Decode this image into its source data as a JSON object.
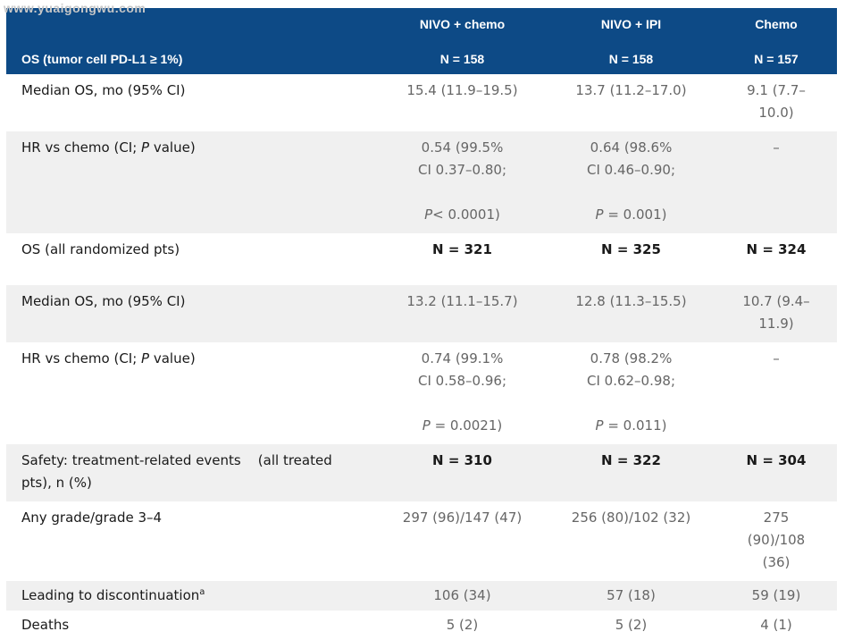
{
  "watermark": "www.yuaigongwu.com",
  "header": {
    "row_label": "OS (tumor cell PD-L1 ≥ 1%)",
    "columns": [
      {
        "name": "NIVO + chemo",
        "n": "N = 158"
      },
      {
        "name": "NIVO + IPI",
        "n": "N = 158"
      },
      {
        "name": "Chemo",
        "n": "N = 157"
      }
    ]
  },
  "rows": {
    "r1": {
      "label": "Median OS, mo (95% CI)",
      "c1": "15.4 (11.9–19.5)",
      "c2": "13.7 (11.2–17.0)",
      "c3": "9.1 (7.7–10.0)"
    },
    "r2": {
      "label_pre": "HR vs chemo (CI; ",
      "label_p": "P",
      "label_post": " value)",
      "c1_line": "0.54 (99.5% CI 0.37–0.80;",
      "c1_p": "P",
      "c1_pval": "< 0.0001)",
      "c2_line": "0.64 (98.6% CI 0.46–0.90;",
      "c2_p": "P",
      "c2_pval": " = 0.001)",
      "c3": "–"
    },
    "r3": {
      "label": "OS (all randomized pts)",
      "c1": "N = 321",
      "c2": "N = 325",
      "c3": "N = 324"
    },
    "r4": {
      "label": "Median OS, mo (95% CI)",
      "c1": "13.2 (11.1–15.7)",
      "c2": "12.8 (11.3–15.5)",
      "c3": "10.7 (9.4–11.9)"
    },
    "r5": {
      "label_pre": "HR vs chemo (CI; ",
      "label_p": "P",
      "label_post": " value)",
      "c1_line": "0.74 (99.1% CI 0.58–0.96;",
      "c1_p": "P",
      "c1_pval": " = 0.0021)",
      "c2_line": "0.78 (98.2% CI 0.62–0.98;",
      "c2_p": "P",
      "c2_pval": " = 0.011)",
      "c3": "–"
    },
    "r6": {
      "label": "Safety: treatment-related events    (all treated pts), n (%)",
      "c1": "N = 310",
      "c2": "N = 322",
      "c3": "N = 304"
    },
    "r7": {
      "label": "Any grade/grade 3–4",
      "c1": "297 (96)/147 (47)",
      "c2": "256 (80)/102 (32)",
      "c3": "275 (90)/108 (36)"
    },
    "r8": {
      "label": "Leading to discontinuation",
      "label_sup": "a",
      "c1": "106 (34)",
      "c2": "57 (18)",
      "c3": "59 (19)"
    },
    "r9": {
      "label": "Deaths",
      "c1": "5 (2)",
      "c2": "5 (2)",
      "c3": "4 (1)"
    }
  },
  "colors": {
    "header_bg": "#0d4a86",
    "shaded_row": "#f0f0f0",
    "value_text": "#666666"
  }
}
